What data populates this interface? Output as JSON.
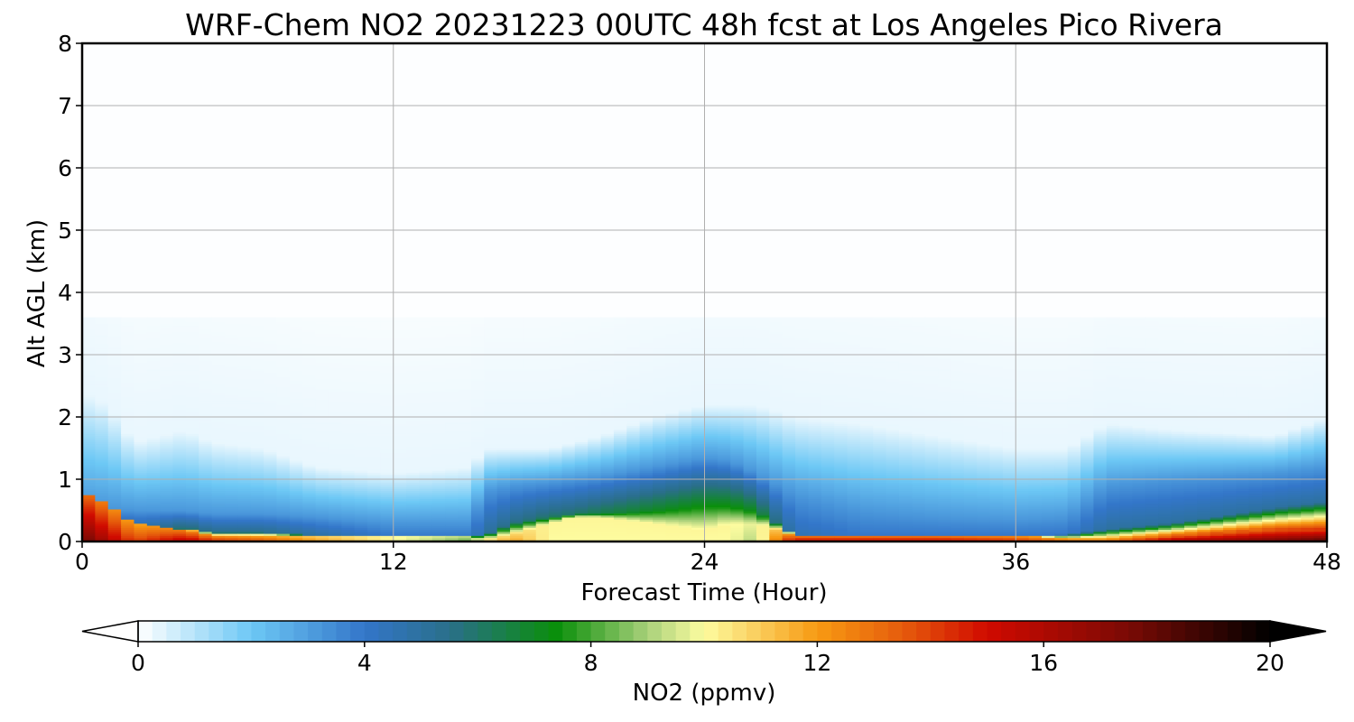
{
  "chart_data": {
    "type": "heatmap",
    "title": "WRF-Chem NO2  20231223 00UTC 48h fcst at Los Angeles Pico Rivera",
    "xlabel": "Forecast Time (Hour)",
    "ylabel": "Alt AGL (km)",
    "xlim": [
      0,
      48
    ],
    "ylim": [
      0,
      8
    ],
    "xticks": [
      "0",
      "12",
      "24",
      "36",
      "48"
    ],
    "yticks": [
      "0",
      "1",
      "2",
      "3",
      "4",
      "5",
      "6",
      "7",
      "8"
    ],
    "grid": true,
    "colorbar": {
      "label": "NO2  (ppmv)",
      "range": [
        0,
        20
      ],
      "ticks": [
        "0",
        "4",
        "8",
        "12",
        "16",
        "20"
      ],
      "extend": "both",
      "orientation": "horizontal",
      "placement": "bottom",
      "stops": [
        {
          "v": 0,
          "c": "#ffffff"
        },
        {
          "v": 2,
          "c": "#6dc8f5"
        },
        {
          "v": 4,
          "c": "#3376c9"
        },
        {
          "v": 5.5,
          "c": "#2a6f8a"
        },
        {
          "v": 7.4,
          "c": "#0a8f0a"
        },
        {
          "v": 9,
          "c": "#a8d07a"
        },
        {
          "v": 10,
          "c": "#fdfca0"
        },
        {
          "v": 12,
          "c": "#f79a12"
        },
        {
          "v": 13.5,
          "c": "#e65c0c"
        },
        {
          "v": 15,
          "c": "#d00a00"
        },
        {
          "v": 17.5,
          "c": "#7a0a05"
        },
        {
          "v": 20,
          "c": "#000000"
        }
      ]
    },
    "profile_keys": {
      "x": [
        0,
        1,
        2,
        4,
        5,
        7,
        9,
        12,
        15,
        15.5,
        16.5,
        18,
        19,
        20,
        22,
        24,
        25,
        26,
        27.5,
        30,
        33,
        36,
        38,
        39.5,
        42,
        46,
        48
      ],
      "conc": [
        0.8,
        0.6,
        0.3,
        0.2,
        0.1,
        0.1,
        0.1,
        0.1,
        0.1,
        0.05,
        0.1,
        0.3,
        0.4,
        0.4,
        0.3,
        0.2,
        0.3,
        0.3,
        0.1,
        0.1,
        0.1,
        0.1,
        0.05,
        0.05,
        0.1,
        0.2,
        0.2
      ],
      "sfc": [
        18,
        16,
        14,
        16,
        15,
        14,
        12,
        10,
        8,
        10,
        12,
        10,
        10,
        10,
        10,
        10,
        10,
        9,
        16,
        16,
        16,
        15,
        14,
        14,
        17,
        18,
        19
      ],
      "bl": [
        0.12,
        0.15,
        0.1,
        0.22,
        0.15,
        0.15,
        0.1,
        0.08,
        0.08,
        0.1,
        0.3,
        0.4,
        0.45,
        0.45,
        0.5,
        0.55,
        0.55,
        0.5,
        0.1,
        0.1,
        0.1,
        0.1,
        0.12,
        0.2,
        0.3,
        0.55,
        0.65
      ],
      "green": [
        5.5,
        6.5,
        5.5,
        6.0,
        5.5,
        5.5,
        5.0,
        4.0,
        4.0,
        5.0,
        5.5,
        6.0,
        6.0,
        6.5,
        7.0,
        7.5,
        7.5,
        7.0,
        4.5,
        4.0,
        4.0,
        4.0,
        4.0,
        5.0,
        5.0,
        5.0,
        5.0
      ],
      "mixing": [
        0.6,
        0.55,
        0.5,
        0.5,
        0.45,
        0.45,
        0.4,
        0.3,
        0.3,
        0.8,
        0.9,
        0.95,
        1.0,
        1.05,
        1.2,
        1.35,
        1.3,
        1.1,
        0.75,
        0.5,
        0.4,
        0.35,
        0.4,
        0.9,
        1.0,
        1.1,
        1.2
      ],
      "haze": [
        2.4,
        2.2,
        1.6,
        1.8,
        1.6,
        1.5,
        1.2,
        1.1,
        1.2,
        1.5,
        1.5,
        1.5,
        1.6,
        1.7,
        2.0,
        2.2,
        2.2,
        2.2,
        2.0,
        1.9,
        1.7,
        1.5,
        1.5,
        1.9,
        1.8,
        1.7,
        2.0
      ]
    }
  }
}
